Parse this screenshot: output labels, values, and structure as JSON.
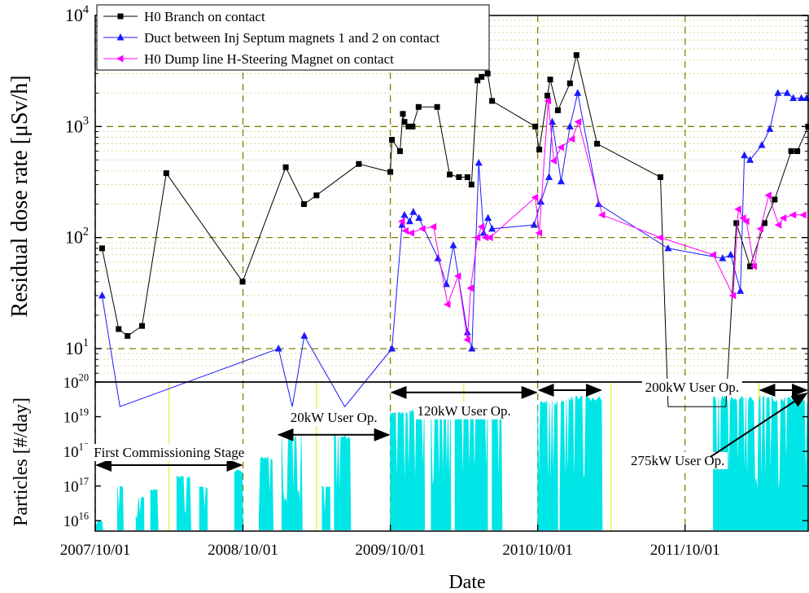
{
  "colors": {
    "series_h0_branch": "#000000",
    "series_duct": "#1a1aff",
    "series_dump": "#ff00ff",
    "particles_fill": "#00e5e5",
    "major_grid": "#808000",
    "minor_grid": "#d8d89a",
    "year_marker": "#e8e800"
  },
  "chart_data": [
    {
      "type": "line",
      "ylabel": "Residual dose rate [μSv/h]",
      "y_scale": "log",
      "ylim": [
        5,
        10000
      ],
      "y_ticks": [
        {
          "value": 10,
          "base": "10",
          "exp": "1"
        },
        {
          "value": 100,
          "base": "10",
          "exp": "2"
        },
        {
          "value": 1000,
          "base": "10",
          "exp": "3"
        },
        {
          "value": 10000,
          "base": "10",
          "exp": "4"
        }
      ],
      "legend": {
        "position": "top-left"
      },
      "series": [
        {
          "name": "H0 Branch on contact",
          "marker": "square",
          "color": "#000000",
          "x": [
            "2007-10-18",
            "2007-11-28",
            "2007-12-20",
            "2008-01-25",
            "2008-03-25",
            "2008-09-30",
            "2009-01-15",
            "2009-03-01",
            "2009-04-01",
            "2009-07-15",
            "2009-10-01",
            "2009-10-05",
            "2009-10-25",
            "2009-11-01",
            "2009-11-05",
            "2009-11-15",
            "2009-11-25",
            "2009-12-10",
            "2010-01-25",
            "2010-02-25",
            "2010-03-20",
            "2010-04-10",
            "2010-04-20",
            "2010-05-05",
            "2010-05-15",
            "2010-05-30",
            "2010-06-10",
            "2010-09-25",
            "2010-10-05",
            "2010-10-25",
            "2010-11-01",
            "2010-11-20",
            "2010-12-20",
            "2011-01-05",
            "2011-02-25",
            "2011-08-01",
            "2011-08-20",
            "2012-01-10",
            "2012-02-05",
            "2012-03-10",
            "2012-04-15",
            "2012-05-10",
            "2012-06-20",
            "2012-07-05",
            "2012-08-01"
          ],
          "values": [
            80,
            15,
            13,
            16,
            380,
            40,
            430,
            200,
            240,
            460,
            390,
            760,
            600,
            1300,
            1100,
            1000,
            1000,
            1500,
            1500,
            370,
            350,
            350,
            300,
            2600,
            2800,
            3000,
            1700,
            1000,
            620,
            1900,
            2650,
            1400,
            2450,
            4400,
            700,
            350,
            3,
            3,
            135,
            55,
            135,
            220,
            600,
            600,
            1000
          ]
        },
        {
          "name": "Duct between Inj Septum magnets 1 and 2 on contact",
          "marker": "triangle-up",
          "color": "#1a1aff",
          "x": [
            "2007-10-18",
            "2007-12-01",
            "2008-12-28",
            "2009-01-31",
            "2009-03-02",
            "2009-06-10",
            "2009-10-05",
            "2009-10-30",
            "2009-11-05",
            "2009-11-18",
            "2009-11-27",
            "2009-12-11",
            "2010-01-27",
            "2010-02-17",
            "2010-03-06",
            "2010-04-10",
            "2010-04-21",
            "2010-05-08",
            "2010-05-20",
            "2010-05-31",
            "2010-06-10",
            "2010-09-22",
            "2010-10-09",
            "2010-10-29",
            "2010-11-06",
            "2010-11-28",
            "2010-12-20",
            "2011-01-08",
            "2011-03-01",
            "2011-08-20",
            "2012-01-02",
            "2012-01-22",
            "2012-02-15",
            "2012-02-25",
            "2012-03-10",
            "2012-04-08",
            "2012-04-28",
            "2012-05-18",
            "2012-06-10",
            "2012-06-25",
            "2012-07-15",
            "2012-07-28"
          ],
          "values": [
            30,
            3,
            10,
            3,
            13,
            3,
            10,
            130,
            160,
            140,
            170,
            150,
            65,
            38,
            85,
            14,
            10,
            470,
            110,
            150,
            120,
            130,
            210,
            350,
            1100,
            320,
            1000,
            2000,
            200,
            80,
            65,
            70,
            33,
            550,
            500,
            680,
            950,
            2000,
            2000,
            1800,
            1800,
            1800
          ]
        },
        {
          "name": "H0 Dump line H-Steering Magnet on contact",
          "marker": "triangle-left",
          "color": "#ff00ff",
          "x": [
            "2009-10-30",
            "2009-11-08",
            "2009-11-22",
            "2009-12-20",
            "2010-01-16",
            "2010-02-20",
            "2010-03-18",
            "2010-04-10",
            "2010-04-18",
            "2010-05-05",
            "2010-05-15",
            "2010-05-25",
            "2010-06-05",
            "2010-09-25",
            "2010-10-05",
            "2010-10-27",
            "2010-11-10",
            "2010-11-28",
            "2010-12-25",
            "2011-01-10",
            "2011-03-10",
            "2011-08-01",
            "2011-12-10",
            "2012-01-28",
            "2012-02-10",
            "2012-02-22",
            "2012-03-01",
            "2012-03-20",
            "2012-04-05",
            "2012-04-25",
            "2012-05-20",
            "2012-06-01",
            "2012-06-25",
            "2012-07-20"
          ],
          "values": [
            140,
            115,
            110,
            120,
            125,
            25,
            45,
            12,
            35,
            100,
            125,
            100,
            100,
            230,
            110,
            1700,
            490,
            650,
            770,
            1100,
            160,
            100,
            70,
            30,
            180,
            150,
            140,
            55,
            120,
            240,
            130,
            150,
            160,
            160
          ]
        }
      ]
    },
    {
      "type": "area",
      "xlabel": "Date",
      "ylabel": "Particles [#/day]",
      "y_scale": "log",
      "ylim": [
        5000000000000000.0,
        1e+20
      ],
      "y_ticks": [
        {
          "value": 1e+16,
          "base": "10",
          "exp": "16"
        },
        {
          "value": 1e+17,
          "base": "10",
          "exp": "17"
        },
        {
          "value": 1e+18,
          "base": "10",
          "exp": "18"
        },
        {
          "value": 1e+19,
          "base": "10",
          "exp": "19"
        },
        {
          "value": 1e+20,
          "base": "10",
          "exp": "20"
        }
      ],
      "x_ticks": [
        {
          "label": "2007/10/01",
          "date": "2007-10-01"
        },
        {
          "label": "2008/10/01",
          "date": "2008-10-01"
        },
        {
          "label": "2009/10/01",
          "date": "2009-10-01"
        },
        {
          "label": "2010/10/01",
          "date": "2010-10-01"
        },
        {
          "label": "2011/10/01",
          "date": "2011-10-01"
        }
      ],
      "x_range": [
        "2007-10-01",
        "2012-08-01"
      ],
      "year_markers": [
        "2008-04-01",
        "2009-04-01",
        "2010-04-01",
        "2011-04-01",
        "2012-04-01"
      ],
      "bursts": [
        {
          "start": "2007-10-01",
          "end": "2007-10-20",
          "peak": 1e+16
        },
        {
          "start": "2007-11-25",
          "end": "2007-12-10",
          "peak": 1e+17
        },
        {
          "start": "2008-01-10",
          "end": "2008-01-30",
          "peak": 5e+16
        },
        {
          "start": "2008-02-15",
          "end": "2008-03-05",
          "peak": 8e+16
        },
        {
          "start": "2008-04-20",
          "end": "2008-05-25",
          "peak": 2e+17
        },
        {
          "start": "2008-06-15",
          "end": "2008-07-05",
          "peak": 1e+17
        },
        {
          "start": "2008-09-10",
          "end": "2008-10-01",
          "peak": 3e+17
        },
        {
          "start": "2008-11-10",
          "end": "2008-12-15",
          "peak": 7e+17
        },
        {
          "start": "2009-01-05",
          "end": "2009-02-25",
          "peak": 3e+18
        },
        {
          "start": "2009-04-15",
          "end": "2009-05-05",
          "peak": 1e+17
        },
        {
          "start": "2009-05-15",
          "end": "2009-06-25",
          "peak": 3e+18
        },
        {
          "start": "2009-10-01",
          "end": "2009-12-25",
          "peak": 1.6e+19
        },
        {
          "start": "2010-01-10",
          "end": "2010-02-28",
          "peak": 2e+19
        },
        {
          "start": "2010-03-10",
          "end": "2010-05-30",
          "peak": 2e+19
        },
        {
          "start": "2010-06-10",
          "end": "2010-07-05",
          "peak": 2.2e+19
        },
        {
          "start": "2010-10-01",
          "end": "2010-11-20",
          "peak": 3e+19
        },
        {
          "start": "2010-11-25",
          "end": "2011-03-10",
          "peak": 4e+19
        },
        {
          "start": "2011-12-10",
          "end": "2012-08-01",
          "peak": 4e+19
        }
      ],
      "annotations": [
        {
          "text": "First Commissioning Stage",
          "from": "2007-10-01",
          "to": "2008-10-01",
          "level": 4e+17
        },
        {
          "text": "20kW User Op.",
          "from": "2008-12-25",
          "to": "2009-10-01",
          "level": 3e+18
        },
        {
          "text": "120kW User Op.",
          "from": "2009-10-01",
          "to": "2010-10-01",
          "level": 5e+19
        },
        {
          "text": "200kW User Op.",
          "from": "2010-10-01",
          "to": "2011-03-10",
          "level": 8e+19
        },
        {
          "text": "275kW User Op.",
          "from": "2012-04-01",
          "to": "2012-08-01",
          "level": 8e+19
        }
      ]
    }
  ]
}
